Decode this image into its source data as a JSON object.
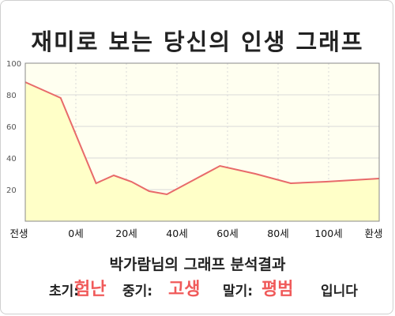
{
  "header": {
    "title": "재미로 보는 당신의 인생 그래프"
  },
  "chart_data": {
    "type": "area",
    "x_ticks": [
      "전생",
      "0세",
      "20세",
      "40세",
      "60세",
      "80세",
      "100세",
      "환생"
    ],
    "x": [
      -12,
      0,
      12,
      18,
      24,
      30,
      36,
      45,
      54,
      66,
      78,
      90,
      108
    ],
    "values": [
      88,
      78,
      24,
      29,
      25,
      19,
      17,
      26,
      35,
      30,
      24,
      25,
      27
    ],
    "ylim": [
      0,
      100
    ],
    "y_ticks": [
      20,
      40,
      60,
      80,
      100
    ],
    "grid": true,
    "colors": {
      "line": "#e86a6a",
      "fill": "#ffffc8",
      "plot_bg": "#fffff0",
      "grid": "#d8d8d8"
    }
  },
  "footer": {
    "caption": "박가람님의 그래프 분석결과",
    "early_label": "초기:",
    "early_value": "험난",
    "mid_label": "중기:",
    "mid_value": "고생",
    "late_label": "말기:",
    "late_value": "평범",
    "ending": "입니다"
  }
}
